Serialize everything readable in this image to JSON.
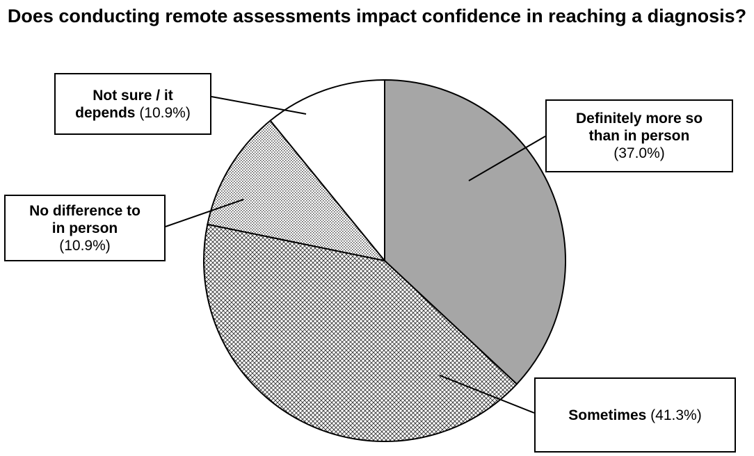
{
  "chart_data": {
    "type": "pie",
    "title": "Does conducting remote assessments impact confidence in reaching a diagnosis?",
    "slices": [
      {
        "label": "Definitely more so than in person",
        "value": 37.0,
        "value_text": "(37.0%)",
        "fill": "#a6a6a6",
        "pattern": "solid"
      },
      {
        "label": "Sometimes",
        "value": 41.3,
        "value_text": "(41.3%)",
        "fill": "#ffffff",
        "pattern": "crosshatch"
      },
      {
        "label": "No difference to in person",
        "value": 10.9,
        "value_text": "(10.9%)",
        "fill": "#ffffff",
        "pattern": "dotted"
      },
      {
        "label": "Not sure / it depends",
        "value": 10.9,
        "value_text": "(10.9%)",
        "fill": "#ffffff",
        "pattern": "none"
      }
    ]
  },
  "callouts": {
    "definitely": {
      "line1": "Definitely more so",
      "line2": "than in person",
      "line3": "(37.0%)"
    },
    "sometimes": {
      "bold": "Sometimes",
      "rest": " (41.3%)"
    },
    "no_difference": {
      "line1": "No difference to",
      "line2": "in person",
      "line3": "(10.9%)"
    },
    "not_sure": {
      "line1": "Not sure / it",
      "line2_bold": "depends",
      "line2_rest": " (10.9%)"
    }
  }
}
